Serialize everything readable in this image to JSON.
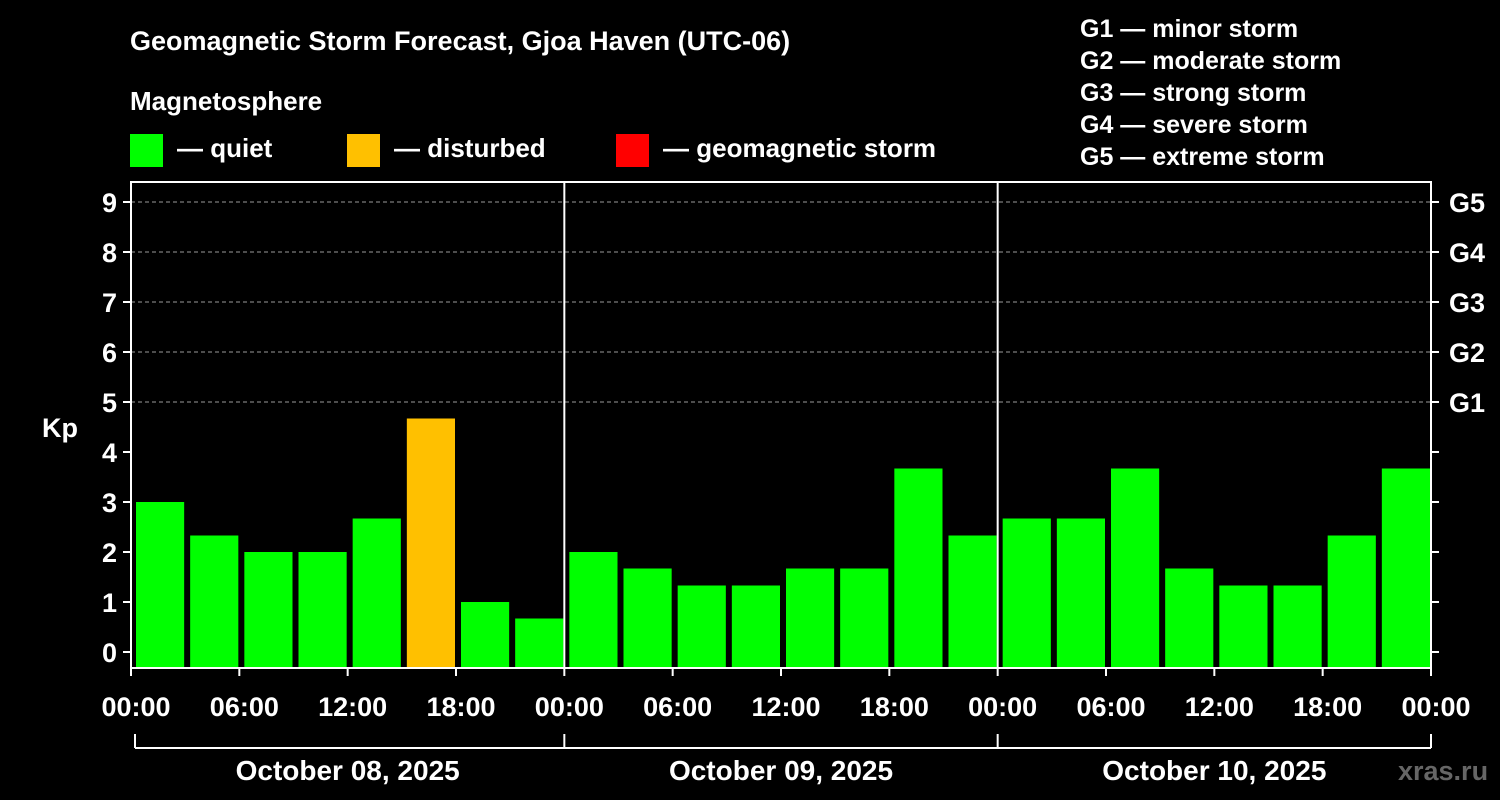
{
  "chart_data": {
    "type": "bar",
    "title": "Geomagnetic Storm Forecast, Gjoa Haven (UTC-06)",
    "legend_title": "Magnetosphere",
    "legend": [
      {
        "label": "— quiet",
        "color": "#00ff00"
      },
      {
        "label": "— disturbed",
        "color": "#ffc000"
      },
      {
        "label": "— geomagnetic storm",
        "color": "#ff0000"
      }
    ],
    "storm_scale": [
      "G1 — minor storm",
      "G2 — moderate storm",
      "G3 — strong storm",
      "G4 — severe storm",
      "G5 — extreme storm"
    ],
    "ylabel": "Kp",
    "ylim": [
      0,
      9
    ],
    "y_ticks": [
      "0",
      "1",
      "2",
      "3",
      "4",
      "5",
      "6",
      "7",
      "8",
      "9"
    ],
    "right_axis_labels": [
      {
        "kp": 5,
        "label": "G1"
      },
      {
        "kp": 6,
        "label": "G2"
      },
      {
        "kp": 7,
        "label": "G3"
      },
      {
        "kp": 8,
        "label": "G4"
      },
      {
        "kp": 9,
        "label": "G5"
      }
    ],
    "grid": "dashed horizontal at Kp 5–9",
    "x_tick_labels": [
      "00:00",
      "06:00",
      "12:00",
      "18:00",
      "00:00",
      "06:00",
      "12:00",
      "18:00",
      "00:00",
      "06:00",
      "12:00",
      "18:00",
      "00:00"
    ],
    "days": [
      "October 08, 2025",
      "October 09, 2025",
      "October 10, 2025"
    ],
    "interval_hours": 3,
    "values": [
      3.0,
      2.33,
      2.0,
      2.0,
      2.67,
      4.67,
      1.0,
      0.67,
      2.0,
      1.67,
      1.33,
      1.33,
      1.67,
      1.67,
      3.67,
      2.33,
      2.67,
      2.67,
      3.67,
      1.67,
      1.33,
      1.33,
      2.33,
      3.67
    ],
    "colors": [
      "#00ff00",
      "#00ff00",
      "#00ff00",
      "#00ff00",
      "#00ff00",
      "#ffc000",
      "#00ff00",
      "#00ff00",
      "#00ff00",
      "#00ff00",
      "#00ff00",
      "#00ff00",
      "#00ff00",
      "#00ff00",
      "#00ff00",
      "#00ff00",
      "#00ff00",
      "#00ff00",
      "#00ff00",
      "#00ff00",
      "#00ff00",
      "#00ff00",
      "#00ff00",
      "#00ff00"
    ]
  },
  "watermark": "xras.ru"
}
